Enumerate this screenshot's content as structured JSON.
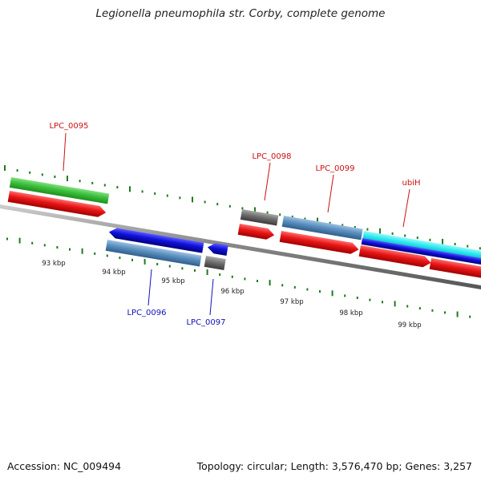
{
  "title": "Legionella pneumophila str. Corby, complete genome",
  "footer": {
    "accession": "Accession: NC_009494",
    "summary": "Topology: circular; Length: 3,576,470 bp; Genes: 3,257"
  },
  "colors": {
    "backbone": "#8a8a8a",
    "tick": "#1e7a1e",
    "label_forward": "#cc1111",
    "label_reverse": "#1111bb",
    "gene_green": "#3cc03c",
    "cds_red": "#e81616",
    "gene_blue": "#1111dd",
    "cds_steel": "#5a8fc0",
    "cds_gray": "#6f6f6f",
    "gene_cyan": "#22e8ee"
  },
  "ruler": [
    "93 kbp",
    "94 kbp",
    "95 kbp",
    "96 kbp",
    "97 kbp",
    "98 kbp",
    "99 kbp"
  ],
  "gene_labels": [
    {
      "key": "lpc0095",
      "text": "LPC_0095"
    },
    {
      "key": "lpc0096",
      "text": "LPC_0096"
    },
    {
      "key": "lpc0097",
      "text": "LPC_0097"
    },
    {
      "key": "lpc0098",
      "text": "LPC_0098"
    },
    {
      "key": "lpc0099",
      "text": "LPC_0099"
    },
    {
      "key": "ubih",
      "text": "ubiH"
    }
  ]
}
